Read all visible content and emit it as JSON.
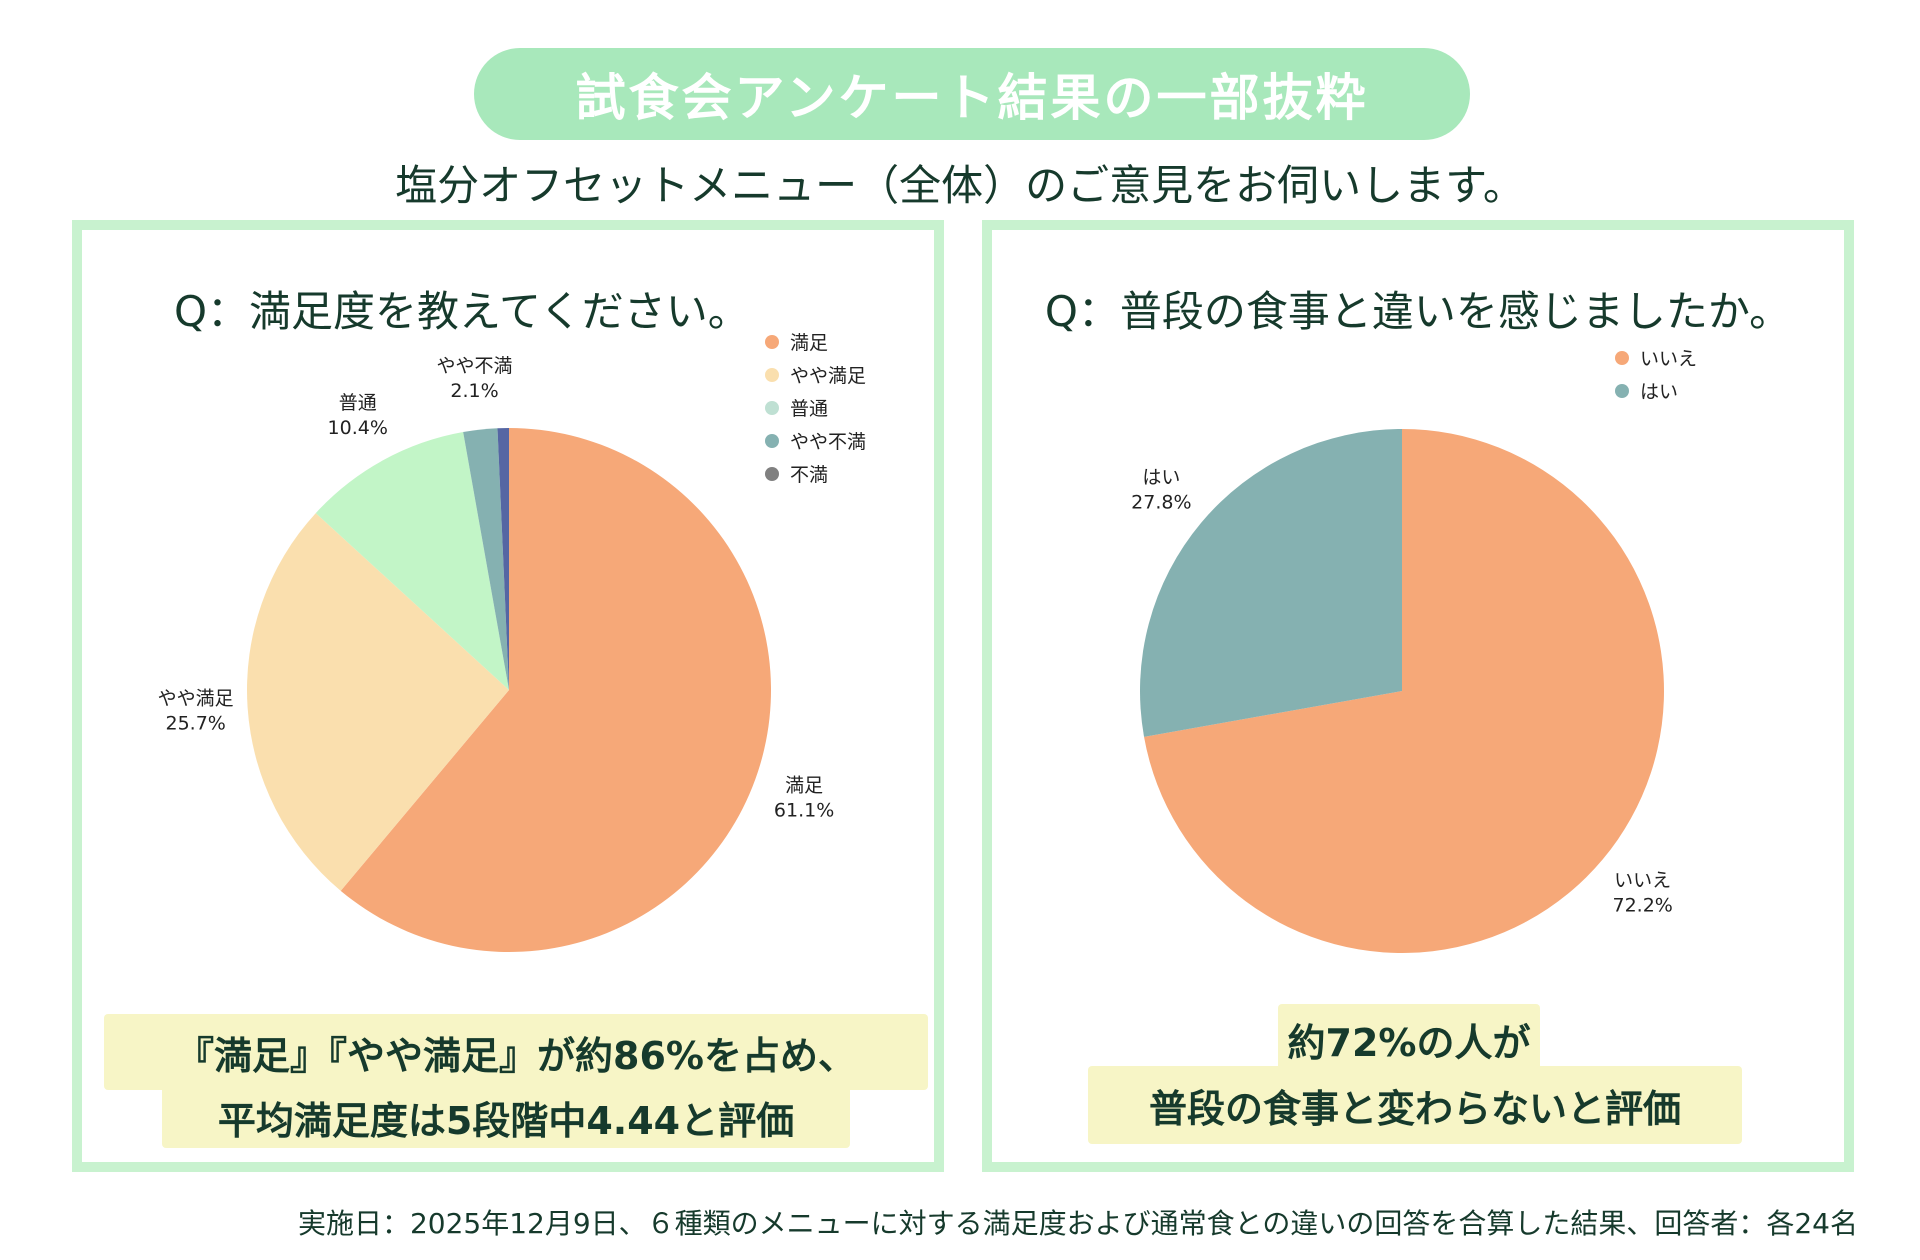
{
  "header": {
    "title": "試食会アンケート結果の一部抜粋",
    "subtitle": "塩分オフセットメニュー（全体）のご意見をお伺いします。"
  },
  "colors": {
    "title_pill": "#a8e8bb",
    "panel_border": "#c8f2cf",
    "highlight_bg": "#f7f5c6",
    "text": "#163a2c"
  },
  "chart_data": [
    {
      "type": "pie",
      "title": "Q：満足度を教えてください。",
      "categories": [
        "満足",
        "やや満足",
        "普通",
        "やや不満",
        "不満"
      ],
      "values": [
        61.1,
        25.7,
        10.4,
        2.1,
        0.7
      ],
      "labels": [
        "61.1%",
        "25.7%",
        "10.4%",
        "2.1%",
        ""
      ],
      "colors": [
        "#f6a878",
        "#fadfae",
        "#c2f5c7",
        "#85b1b1",
        "#5566a3"
      ],
      "legend_colors": [
        "#f6a878",
        "#fadfae",
        "#bfe0d3",
        "#85b1b1",
        "#808080"
      ],
      "legend_position": "top-right",
      "summary": [
        "『満足』『やや満足』が約86%を占め、",
        "平均満足度は5段階中4.44と評価"
      ]
    },
    {
      "type": "pie",
      "title": "Q：普段の食事と違いを感じましたか。",
      "categories": [
        "いいえ",
        "はい"
      ],
      "values": [
        72.2,
        27.8
      ],
      "labels": [
        "72.2%",
        "27.8%"
      ],
      "colors": [
        "#f6a878",
        "#85b1b1"
      ],
      "legend_colors": [
        "#f6a878",
        "#85b1b1"
      ],
      "legend_position": "top-right",
      "summary": [
        "約72%の人が",
        "普段の食事と変わらないと評価"
      ]
    }
  ],
  "footer": {
    "note": "実施日：2025年12月9日、６種類のメニューに対する満足度および通常食との違いの回答を合算した結果、回答者：各24名"
  }
}
